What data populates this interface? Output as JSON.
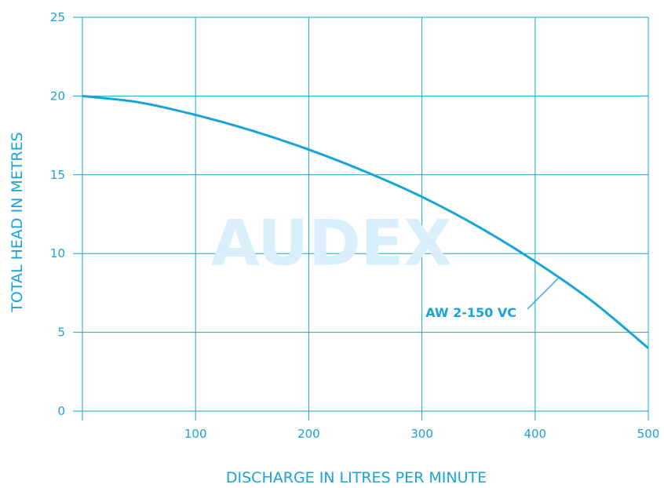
{
  "watermark": "AUDEX",
  "colors": {
    "line": "#1aa3d9",
    "grid": "#1aa3d9",
    "watermark": "#d9effb"
  },
  "chart_data": {
    "type": "line",
    "xlabel": "DISCHARGE IN LITRES PER MINUTE",
    "ylabel": "TOTAL HEAD IN METRES",
    "xlim": [
      0,
      500
    ],
    "ylim": [
      0,
      25
    ],
    "x_ticks": [
      100,
      200,
      300,
      400,
      500
    ],
    "x_tick_labels": [
      "100",
      "200",
      "300",
      "400",
      "500"
    ],
    "y_ticks": [
      0,
      5,
      10,
      15,
      20,
      25
    ],
    "y_tick_labels": [
      "0",
      "5",
      "10",
      "15",
      "20",
      "25"
    ],
    "grid": true,
    "series": [
      {
        "name": "AW 2-150 VC",
        "x": [
          0,
          50,
          100,
          150,
          200,
          250,
          300,
          350,
          400,
          450,
          500
        ],
        "y": [
          20.0,
          19.6,
          18.8,
          17.8,
          16.6,
          15.2,
          13.6,
          11.7,
          9.5,
          7.0,
          4.0
        ]
      }
    ]
  }
}
